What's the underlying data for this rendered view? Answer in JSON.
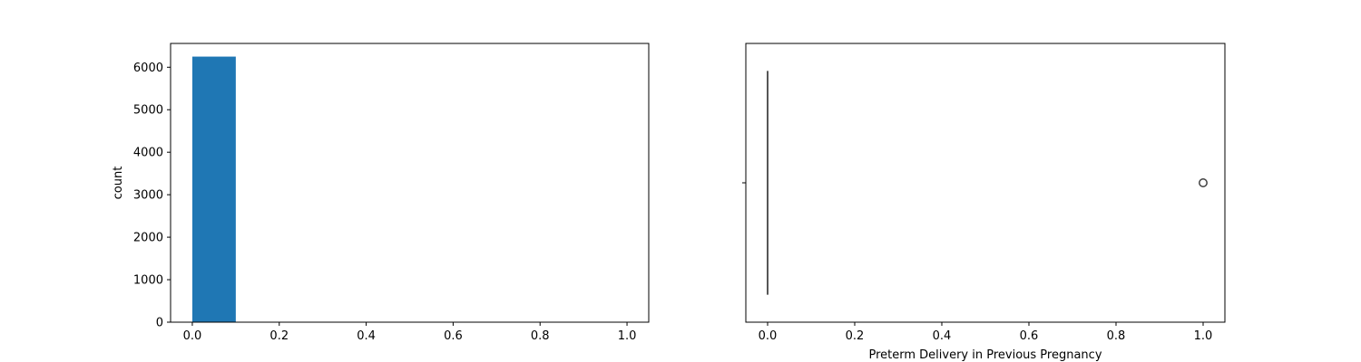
{
  "chart_data": [
    {
      "type": "bar",
      "title": "",
      "xlabel": "",
      "ylabel": "count",
      "bins": [
        {
          "x0": 0.0,
          "x1": 0.1,
          "count": 6250
        },
        {
          "x0": 0.1,
          "x1": 0.2,
          "count": 0
        },
        {
          "x0": 0.2,
          "x1": 0.3,
          "count": 0
        },
        {
          "x0": 0.3,
          "x1": 0.4,
          "count": 0
        },
        {
          "x0": 0.4,
          "x1": 0.5,
          "count": 0
        },
        {
          "x0": 0.5,
          "x1": 0.6,
          "count": 0
        },
        {
          "x0": 0.6,
          "x1": 0.7,
          "count": 0
        },
        {
          "x0": 0.7,
          "x1": 0.8,
          "count": 0
        },
        {
          "x0": 0.8,
          "x1": 0.9,
          "count": 0
        },
        {
          "x0": 0.9,
          "x1": 1.0,
          "count": 3
        }
      ],
      "xlim": [
        -0.05,
        1.05
      ],
      "ylim": [
        0,
        6560
      ],
      "xticks": [
        "0.0",
        "0.2",
        "0.4",
        "0.6",
        "0.8",
        "1.0"
      ],
      "yticks": [
        "0",
        "1000",
        "2000",
        "3000",
        "4000",
        "5000",
        "6000"
      ],
      "bar_color": "#1f77b4",
      "grid": false
    },
    {
      "type": "box",
      "title": "",
      "xlabel": "Preterm Delivery in Previous Pregnancy",
      "ylabel": "",
      "box": {
        "q1": 0,
        "median": 0,
        "q3": 0,
        "whisker_low": 0,
        "whisker_high": 0
      },
      "outliers": [
        1.0
      ],
      "xlim": [
        -0.05,
        1.05
      ],
      "xticks": [
        "0.0",
        "0.2",
        "0.4",
        "0.6",
        "0.8",
        "1.0"
      ],
      "line_color": "#3f3f3f",
      "grid": false
    }
  ]
}
